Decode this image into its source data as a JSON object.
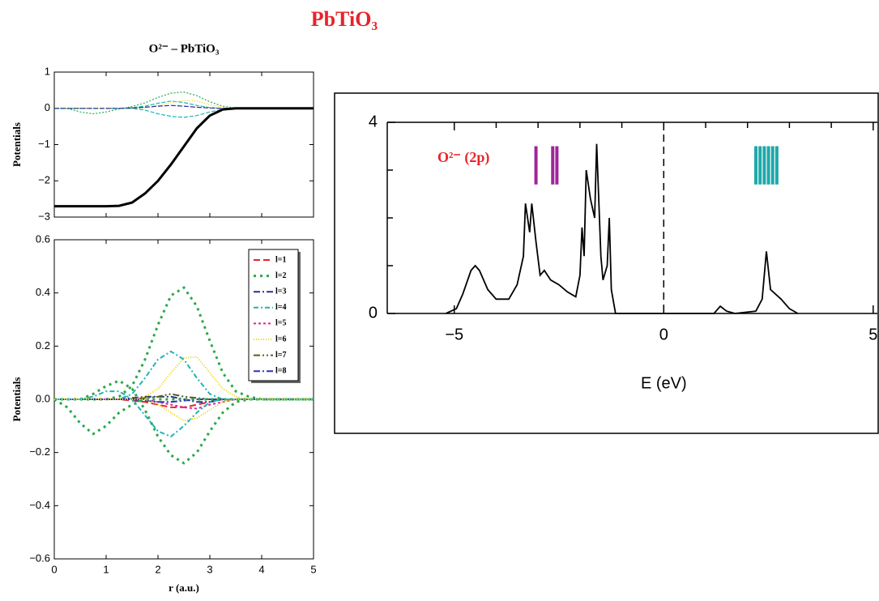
{
  "title": "PbTiO₃",
  "chart_data": [
    {
      "type": "line",
      "title": "O²⁻ – PbTiO₃",
      "ylabel": "Potentials",
      "x": [
        0,
        0.25,
        0.5,
        0.75,
        1,
        1.25,
        1.5,
        1.75,
        2,
        2.25,
        2.5,
        2.75,
        3,
        3.25,
        3.5,
        3.75,
        4,
        4.25,
        4.5,
        4.75,
        5
      ],
      "xlim": [
        0,
        5
      ],
      "xtickmarks": [
        0,
        1,
        2,
        3,
        4,
        5
      ],
      "ylim": [
        -3,
        1
      ],
      "yticks": [
        {
          "value": -3,
          "label": "−3"
        },
        {
          "value": -2,
          "label": "−2"
        },
        {
          "value": -1,
          "label": "−1"
        },
        0,
        1
      ],
      "series": [
        {
          "color": "#2aa84a",
          "dash": "2,2",
          "width": 1.2,
          "values": [
            0,
            0,
            -0.1,
            -0.15,
            -0.1,
            -0.02,
            0.05,
            0.15,
            0.3,
            0.42,
            0.45,
            0.35,
            0.18,
            0.06,
            0.01,
            0,
            0,
            0,
            0,
            0,
            0
          ]
        },
        {
          "color": "#1fb3b8",
          "dash": "5,2",
          "width": 1.2,
          "values": [
            0,
            0,
            0,
            0,
            0,
            0,
            0,
            -0.05,
            -0.15,
            -0.22,
            -0.25,
            -0.2,
            -0.1,
            -0.03,
            0,
            0,
            0,
            0,
            0,
            0,
            0
          ]
        },
        {
          "color": "#1fb3b8",
          "dash": "5,2",
          "width": 1.2,
          "values": [
            0,
            0,
            0,
            0,
            0,
            0,
            0.02,
            0.06,
            0.14,
            0.2,
            0.16,
            0.08,
            0.02,
            0,
            0,
            0,
            0,
            0,
            0,
            0,
            0
          ]
        },
        {
          "color": "#f0d000",
          "dash": "1,2",
          "width": 1.2,
          "values": [
            0,
            0,
            0,
            0,
            0,
            0,
            0,
            0.02,
            0.08,
            0.16,
            0.22,
            0.2,
            0.1,
            0.03,
            0,
            0,
            0,
            0,
            0,
            0,
            0
          ]
        },
        {
          "color": "#2b2f8f",
          "dash": "6,2",
          "width": 1.2,
          "values": [
            0,
            0,
            0,
            0,
            0,
            0,
            0.01,
            0.03,
            0.06,
            0.08,
            0.06,
            0.03,
            0.01,
            0,
            0,
            0,
            0,
            0,
            0,
            0,
            0
          ]
        },
        {
          "color": "#000000",
          "width": 3,
          "values": [
            -2.7,
            -2.7,
            -2.7,
            -2.7,
            -2.7,
            -2.69,
            -2.6,
            -2.35,
            -2.0,
            -1.55,
            -1.05,
            -0.55,
            -0.2,
            -0.03,
            0,
            0,
            0,
            0,
            0,
            0,
            0
          ]
        }
      ]
    },
    {
      "type": "line",
      "ylabel": "Potentials",
      "xlabel": "r (a.u.)",
      "x": [
        0,
        0.25,
        0.5,
        0.75,
        1,
        1.25,
        1.5,
        1.75,
        2,
        2.25,
        2.5,
        2.75,
        3,
        3.25,
        3.5,
        3.75,
        4,
        4.25,
        4.5,
        4.75,
        5
      ],
      "xlim": [
        0,
        5
      ],
      "xticks": [
        0,
        1,
        2,
        3,
        4,
        5
      ],
      "ylim": [
        -0.6,
        0.6
      ],
      "yticks": [
        {
          "value": -0.6,
          "label": "−0.6"
        },
        {
          "value": -0.4,
          "label": "−0.4"
        },
        {
          "value": -0.2,
          "label": "−0.2"
        },
        {
          "value": 0,
          "label": "0.0"
        },
        0.2,
        0.4,
        0.6
      ],
      "series": [
        {
          "name": "l=1",
          "color": "#e8232a",
          "dash": "8,4",
          "width": 2,
          "values": [
            0,
            0,
            0,
            0,
            0,
            0,
            -0.005,
            -0.01,
            -0.02,
            -0.03,
            -0.03,
            -0.02,
            -0.01,
            0,
            0,
            0,
            0,
            0,
            0,
            0,
            0
          ]
        },
        {
          "name": "l=2",
          "color": "#2aa84a",
          "dash": "3,5",
          "width": 3,
          "values": [
            0,
            0,
            0,
            0,
            0,
            0.01,
            0.05,
            0.15,
            0.28,
            0.39,
            0.42,
            0.35,
            0.22,
            0.1,
            0.03,
            0.01,
            0,
            0,
            0,
            0,
            0
          ]
        },
        {
          "name": "l=3",
          "color": "#2b2f8f",
          "dash": "8,3,2,3",
          "width": 2,
          "values": [
            0,
            0,
            0,
            0,
            0,
            0,
            0.005,
            0.01,
            0.01,
            0.01,
            0,
            -0.01,
            -0.01,
            0,
            0,
            0,
            0,
            0,
            0,
            0,
            0
          ]
        },
        {
          "name": "l=4",
          "color": "#1fb3b8",
          "dash": "6,3,2,3",
          "width": 2,
          "values": [
            0,
            0,
            0,
            0,
            0,
            0,
            0.02,
            0.08,
            0.15,
            0.18,
            0.15,
            0.08,
            0.02,
            0,
            0,
            0,
            0,
            0,
            0,
            0,
            0
          ]
        },
        {
          "name": "l=5",
          "color": "#e0209a",
          "dash": "3,3",
          "width": 2,
          "values": [
            0,
            0,
            0,
            0,
            0,
            0,
            0,
            0,
            -0.01,
            -0.02,
            -0.03,
            -0.035,
            -0.02,
            -0.01,
            0,
            0,
            0,
            0,
            0,
            0,
            0
          ]
        },
        {
          "name": "l=6",
          "color": "#f0d000",
          "dash": "1,2",
          "width": 2,
          "values": [
            0,
            0,
            0,
            0,
            0,
            0,
            0,
            0.01,
            0.04,
            0.1,
            0.155,
            0.16,
            0.1,
            0.04,
            0.01,
            0,
            0,
            0,
            0,
            0,
            0
          ]
        },
        {
          "name": "l=7",
          "color": "#5c5a18",
          "dash": "8,3,2,3,2,3",
          "width": 2,
          "values": [
            0,
            0,
            0,
            0,
            0,
            0,
            0,
            0.005,
            0.01,
            0.02,
            0.01,
            0.005,
            0,
            0,
            0,
            0,
            0,
            0,
            0,
            0,
            0
          ]
        },
        {
          "name": "l=8",
          "color": "#3030c0",
          "dash": "8,3,2,3",
          "width": 2,
          "values": [
            0,
            0,
            0,
            0,
            0,
            0,
            0,
            -0.005,
            -0.01,
            -0.01,
            -0.005,
            0,
            0,
            0,
            0,
            0,
            0,
            0,
            0,
            0,
            0
          ]
        },
        {
          "color": "#2aa84a",
          "dash": "3,5",
          "width": 3,
          "values": [
            0,
            0,
            0,
            0.02,
            0.05,
            0.07,
            0.04,
            -0.04,
            -0.14,
            -0.21,
            -0.24,
            -0.2,
            -0.12,
            -0.05,
            -0.01,
            0,
            0,
            0,
            0,
            0,
            0
          ]
        },
        {
          "color": "#2aa84a",
          "dash": "3,5",
          "width": 3,
          "values": [
            0,
            -0.03,
            -0.09,
            -0.13,
            -0.1,
            -0.05,
            -0.02,
            0,
            0,
            0,
            0,
            0,
            0,
            0,
            0,
            0,
            0,
            0,
            0,
            0,
            0
          ]
        },
        {
          "color": "#1fb3b8",
          "dash": "6,3,2,3",
          "width": 2,
          "values": [
            0,
            0,
            0,
            0.01,
            0.03,
            0.03,
            0,
            -0.06,
            -0.12,
            -0.14,
            -0.1,
            -0.05,
            -0.01,
            0,
            0,
            0,
            0,
            0,
            0,
            0,
            0
          ]
        },
        {
          "color": "#f0d000",
          "dash": "1,2",
          "width": 2,
          "values": [
            0,
            0,
            0,
            0,
            0,
            0,
            0,
            0,
            -0.02,
            -0.05,
            -0.08,
            -0.07,
            -0.04,
            -0.01,
            0,
            0,
            0,
            0,
            0,
            0,
            0
          ]
        }
      ]
    },
    {
      "type": "dos",
      "xlabel": "E (eV)",
      "annotation": "O²⁻ (2p)",
      "x": [
        -5.2,
        -4.95,
        -4.8,
        -4.6,
        -4.5,
        -4.4,
        -4.2,
        -4.0,
        -3.7,
        -3.5,
        -3.35,
        -3.3,
        -3.2,
        -3.15,
        -3.05,
        -2.95,
        -2.85,
        -2.7,
        -2.5,
        -2.3,
        -2.1,
        -2.0,
        -1.95,
        -1.9,
        -1.85,
        -1.75,
        -1.65,
        -1.6,
        -1.5,
        -1.45,
        -1.35,
        -1.3,
        -1.25,
        -1.15,
        1.2,
        1.35,
        1.5,
        1.7,
        2.2,
        2.35,
        2.45,
        2.55,
        2.8,
        3.0,
        3.2
      ],
      "values": [
        0,
        0.1,
        0.4,
        0.9,
        1.0,
        0.9,
        0.5,
        0.3,
        0.3,
        0.6,
        1.2,
        2.3,
        1.7,
        2.3,
        1.5,
        0.8,
        0.9,
        0.7,
        0.6,
        0.45,
        0.35,
        0.8,
        1.8,
        1.2,
        3.0,
        2.4,
        2.0,
        3.55,
        1.2,
        0.7,
        1.0,
        2.0,
        0.5,
        0,
        0,
        0.15,
        0.05,
        0,
        0.05,
        0.3,
        1.3,
        0.5,
        0.3,
        0.1,
        0
      ],
      "color": "#000000",
      "xlim": [
        -6.6,
        5.1
      ],
      "xticks": [
        {
          "value": -5,
          "label": "−5"
        },
        0,
        5
      ],
      "xminorticks": [
        -4,
        -3,
        -2,
        -1,
        1,
        2,
        3,
        4
      ],
      "ylim": [
        0,
        4
      ],
      "yticks": [
        0,
        4
      ],
      "yminorticks": [
        1,
        2,
        3
      ],
      "vline": 0,
      "levels": [
        {
          "color": "#a0259a",
          "x": [
            -3.05,
            -2.65,
            -2.55
          ],
          "ymin": 2.7,
          "ymax": 3.5
        },
        {
          "color": "#1fa8aa",
          "x": [
            2.2,
            2.3,
            2.4,
            2.5,
            2.6,
            2.7
          ],
          "ymin": 2.7,
          "ymax": 3.5
        }
      ]
    }
  ]
}
